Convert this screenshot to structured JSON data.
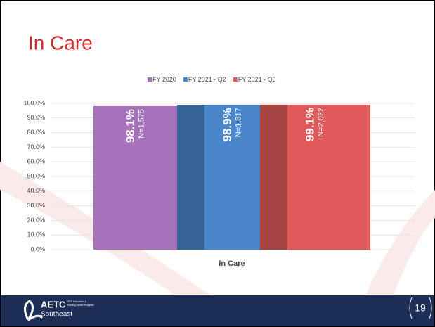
{
  "slide": {
    "title": "In Care",
    "page_number": "19",
    "logo": {
      "name": "AETC",
      "region": "Southeast",
      "tagline_1": "AIDS Education &",
      "tagline_2": "Training Center Program"
    }
  },
  "chart_data": {
    "type": "bar",
    "categories": [
      "In Care"
    ],
    "series": [
      {
        "name": "FY 2020",
        "color": "#a672b9",
        "values": [
          98.1
        ],
        "value_labels": [
          "98.1%"
        ],
        "sample_labels": [
          "N=1,575"
        ]
      },
      {
        "name": "FY 2021 - Q2",
        "color": "#4a86c9",
        "values": [
          98.9
        ],
        "value_labels": [
          "98.9%"
        ],
        "sample_labels": [
          "N=1,817"
        ]
      },
      {
        "name": "FY 2021 - Q3",
        "color": "#e05a5a",
        "values": [
          99.1
        ],
        "value_labels": [
          "99.1%"
        ],
        "sample_labels": [
          "N=2,022"
        ]
      }
    ],
    "ylim": [
      0,
      100
    ],
    "yticks": [
      {
        "value": 0,
        "label": "0.0%"
      },
      {
        "value": 10,
        "label": "10.0%"
      },
      {
        "value": 20,
        "label": "20.0%"
      },
      {
        "value": 30,
        "label": "30.0%"
      },
      {
        "value": 40,
        "label": "40.0%"
      },
      {
        "value": 50,
        "label": "50.0%"
      },
      {
        "value": 60,
        "label": "60.0%"
      },
      {
        "value": 70,
        "label": "70.0%"
      },
      {
        "value": 80,
        "label": "80.0%"
      },
      {
        "value": 90,
        "label": "90.0%"
      },
      {
        "value": 100,
        "label": "100.0%"
      }
    ],
    "grid": true
  }
}
